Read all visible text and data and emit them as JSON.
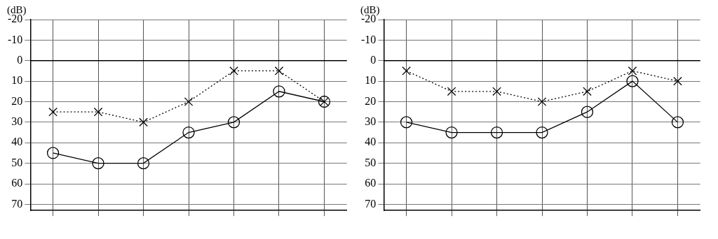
{
  "chart_data": [
    {
      "type": "line",
      "ylabel": "(dB)",
      "categories": [
        null,
        null,
        null,
        null,
        null,
        null,
        null
      ],
      "ylim": [
        73,
        -20
      ],
      "yticks": [
        -20,
        -10,
        0,
        10,
        20,
        30,
        40,
        50,
        60,
        70
      ],
      "grid": true,
      "ref_lines": [
        {
          "axis": "y",
          "value": 0,
          "color": "#000000",
          "line_style": "solid"
        }
      ],
      "series": [
        {
          "color": "#000000",
          "marker": "circle",
          "line_style": "solid",
          "values": [
            45,
            50,
            50,
            35,
            30,
            15,
            20
          ]
        },
        {
          "color": "#000000",
          "marker": "cross",
          "line_style": "dotted",
          "values": [
            25,
            25,
            30,
            20,
            5,
            5,
            20
          ]
        }
      ]
    },
    {
      "type": "line",
      "ylabel": "(dB)",
      "categories": [
        null,
        null,
        null,
        null,
        null,
        null,
        null
      ],
      "ylim": [
        73,
        -20
      ],
      "yticks": [
        -20,
        -10,
        0,
        10,
        20,
        30,
        40,
        50,
        60,
        70
      ],
      "grid": true,
      "ref_lines": [
        {
          "axis": "y",
          "value": 0,
          "color": "#000000",
          "line_style": "solid"
        }
      ],
      "series": [
        {
          "color": "#000000",
          "marker": "circle",
          "line_style": "solid",
          "values": [
            30,
            35,
            35,
            35,
            25,
            10,
            30
          ]
        },
        {
          "color": "#000000",
          "marker": "cross",
          "line_style": "dotted",
          "values": [
            5,
            15,
            15,
            20,
            15,
            5,
            10
          ]
        }
      ]
    }
  ]
}
